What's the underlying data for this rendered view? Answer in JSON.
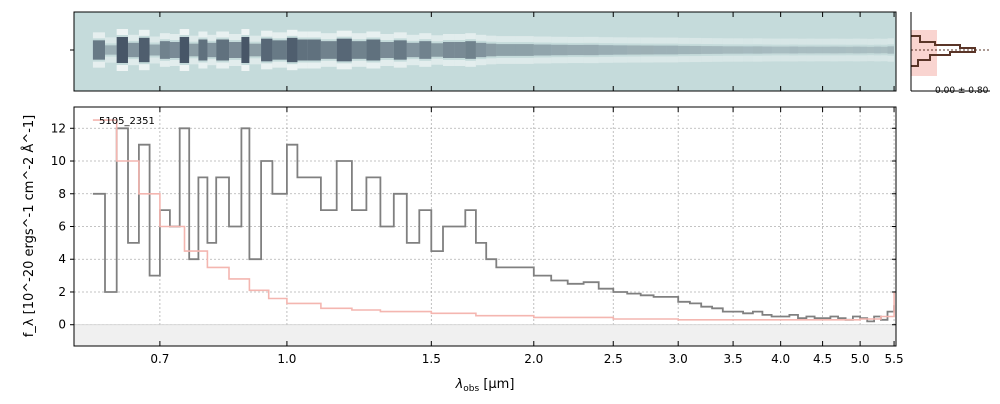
{
  "object_label": "5105_2351",
  "inset_label": "0.00 ± 0.80",
  "chart_data": {
    "type": "line",
    "xlabel_prefix": "λ",
    "xlabel_sub": "obs",
    "xlabel_unit": " [μm]",
    "ylabel": "f_λ [10^-20 ergs^-1 cm^-2 Å^-1]",
    "xlim": [
      0.55,
      5.53
    ],
    "ylim": [
      -1.3,
      13.3
    ],
    "x_ticks": [
      "0.7",
      "1.0",
      "1.5",
      "2.0",
      "2.5",
      "3.0",
      "3.5",
      "4.0",
      "4.5",
      "5.0",
      "5.5"
    ],
    "y_ticks": [
      "0",
      "2",
      "4",
      "6",
      "8",
      "10",
      "12"
    ],
    "grid": true,
    "colors": {
      "observed": "#808080",
      "model": "#f4b6b0",
      "model_fill": "#f7c9c4",
      "panel_bg": "#c5dbdb",
      "hist": "#5a3528",
      "trace": "#1c2940"
    },
    "series": [
      {
        "key": "observed",
        "x": [
          0.58,
          0.6,
          0.62,
          0.64,
          0.66,
          0.68,
          0.7,
          0.72,
          0.74,
          0.76,
          0.78,
          0.8,
          0.82,
          0.85,
          0.88,
          0.9,
          0.93,
          0.96,
          1.0,
          1.03,
          1.06,
          1.1,
          1.15,
          1.2,
          1.25,
          1.3,
          1.35,
          1.4,
          1.45,
          1.5,
          1.55,
          1.6,
          1.65,
          1.7,
          1.75,
          1.8,
          1.9,
          2.0,
          2.1,
          2.2,
          2.3,
          2.4,
          2.5,
          2.6,
          2.7,
          2.8,
          2.9,
          3.0,
          3.1,
          3.2,
          3.3,
          3.4,
          3.5,
          3.6,
          3.7,
          3.8,
          3.9,
          4.0,
          4.1,
          4.2,
          4.3,
          4.4,
          4.5,
          4.6,
          4.7,
          4.8,
          4.9,
          5.0,
          5.1,
          5.2,
          5.3,
          5.4,
          5.5
        ],
        "y": [
          8,
          2,
          12,
          5,
          11,
          3,
          7,
          6,
          12,
          4,
          9,
          5,
          9,
          6,
          12,
          4,
          10,
          8,
          11,
          9,
          9,
          7,
          10,
          7,
          9,
          6,
          8,
          5,
          7,
          4.5,
          6,
          6,
          7,
          5,
          4,
          3.5,
          3.5,
          3,
          2.7,
          2.5,
          2.6,
          2.2,
          2.0,
          1.9,
          1.8,
          1.7,
          1.7,
          1.4,
          1.3,
          1.1,
          1.0,
          0.8,
          0.8,
          0.7,
          0.8,
          0.6,
          0.5,
          0.5,
          0.6,
          0.4,
          0.5,
          0.4,
          0.4,
          0.5,
          0.4,
          0.3,
          0.5,
          0.4,
          0.2,
          0.5,
          0.3,
          0.8,
          1.2
        ]
      },
      {
        "key": "model",
        "x": [
          0.58,
          0.62,
          0.66,
          0.7,
          0.75,
          0.8,
          0.85,
          0.9,
          0.95,
          1.0,
          1.1,
          1.2,
          1.3,
          1.5,
          1.7,
          2.0,
          2.5,
          3.0,
          3.5,
          4.0,
          4.5,
          5.0,
          5.3,
          5.5
        ],
        "y": [
          12.5,
          10,
          8,
          6,
          4.5,
          3.5,
          2.8,
          2.1,
          1.6,
          1.3,
          1.0,
          0.9,
          0.8,
          0.7,
          0.55,
          0.45,
          0.35,
          0.3,
          0.3,
          0.3,
          0.3,
          0.35,
          0.5,
          2.0
        ]
      }
    ]
  }
}
